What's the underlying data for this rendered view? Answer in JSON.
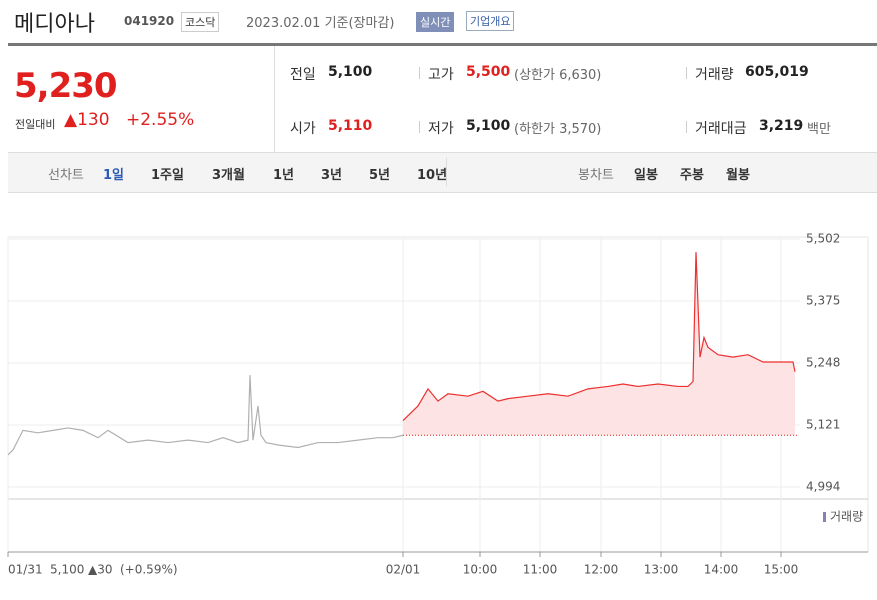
{
  "header": {
    "name": "메디아나",
    "code": "041920",
    "market": "코스닥",
    "date": "2023.02.01 기준(장마감)",
    "realtime": "실시간",
    "company": "기업개요"
  },
  "quote": {
    "price": "5,230",
    "change_label": "전일대비",
    "change": "▲130",
    "change_pct": "+2.55%",
    "items": [
      [
        "전일",
        "5,100",
        ""
      ],
      [
        "고가",
        "5,500",
        "(상한가 6,630)"
      ],
      [
        "거래량",
        "605,019",
        ""
      ],
      [
        "시가",
        "5,110",
        ""
      ],
      [
        "저가",
        "5,100",
        "(하한가 3,570)"
      ],
      [
        "거래대금",
        "3,219",
        "백만"
      ]
    ]
  },
  "tabs": {
    "line_label": "선차트",
    "line": [
      "1일",
      "1주일",
      "3개월",
      "1년",
      "3년",
      "5년",
      "10년"
    ],
    "candle_label": "봉차트",
    "candle": [
      "일봉",
      "주봉",
      "월봉"
    ]
  },
  "status": {
    "price": "5,100",
    "change": "▲30",
    "pct": "(+0.59%)"
  },
  "chart_data": {
    "type": "line",
    "volume_label": "거래량",
    "ylim": [
      4994,
      5502
    ],
    "yticks": [
      {
        "value": 4994,
        "label": "4,994"
      },
      {
        "value": 5121,
        "label": "5,121"
      },
      {
        "value": 5248,
        "label": "5,248"
      },
      {
        "value": 5375,
        "label": "5,375"
      },
      {
        "value": 5502,
        "label": "5,502"
      }
    ],
    "xlim": [
      0,
      789
    ],
    "xticks": [
      {
        "value": 0,
        "label": "01/31"
      },
      {
        "value": 395,
        "label": "02/01"
      },
      {
        "value": 472,
        "label": "10:00"
      },
      {
        "value": 532,
        "label": "11:00"
      },
      {
        "value": 593,
        "label": "12:00"
      },
      {
        "value": 653,
        "label": "13:00"
      },
      {
        "value": 713,
        "label": "14:00"
      },
      {
        "value": 773,
        "label": "15:00"
      }
    ],
    "base_line": 5100,
    "grid": true,
    "series": [
      {
        "color": "#b0b0b0",
        "x": [
          0,
          5,
          15,
          30,
          45,
          60,
          75,
          90,
          100,
          120,
          140,
          160,
          180,
          200,
          215,
          230,
          240,
          242,
          245,
          250,
          253,
          258,
          270,
          290,
          310,
          330,
          350,
          370,
          385,
          395
        ],
        "values": [
          5060,
          5070,
          5110,
          5105,
          5110,
          5115,
          5110,
          5095,
          5110,
          5085,
          5090,
          5085,
          5090,
          5085,
          5095,
          5085,
          5090,
          5223,
          5090,
          5160,
          5100,
          5085,
          5080,
          5075,
          5085,
          5085,
          5090,
          5095,
          5095,
          5100
        ]
      },
      {
        "color": "#ec2f2f",
        "fill": "#fde3e3",
        "x": [
          395,
          400,
          410,
          420,
          430,
          440,
          460,
          475,
          490,
          500,
          520,
          540,
          560,
          580,
          600,
          615,
          630,
          650,
          670,
          680,
          685,
          688,
          692,
          696,
          700,
          710,
          725,
          740,
          755,
          770,
          785,
          787
        ],
        "values": [
          5130,
          5140,
          5160,
          5195,
          5170,
          5185,
          5180,
          5190,
          5170,
          5175,
          5180,
          5185,
          5180,
          5195,
          5200,
          5205,
          5200,
          5205,
          5200,
          5200,
          5210,
          5475,
          5260,
          5300,
          5280,
          5265,
          5260,
          5265,
          5250,
          5250,
          5250,
          5230
        ]
      }
    ]
  }
}
